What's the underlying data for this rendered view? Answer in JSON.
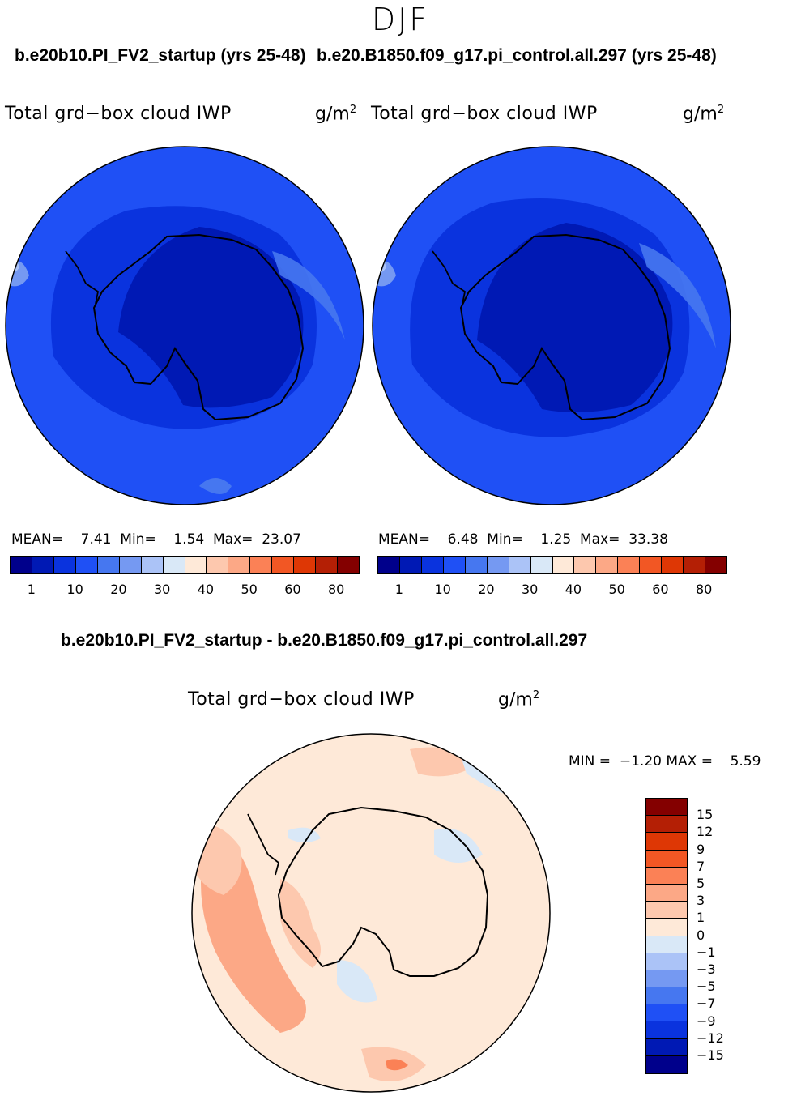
{
  "season": "DJF",
  "case_left_title": "b.e20b10.PI_FV2_startup (yrs 25-48)",
  "case_right_title": "b.e20.B1850.f09_g17.pi_control.all.297 (yrs 25-48)",
  "diff_title": "b.e20b10.PI_FV2_startup - b.e20.B1850.f09_g17.pi_control.all.297",
  "var_name": "Total grd−box cloud IWP",
  "units_base": "g/m",
  "units_exp": "2",
  "colors": {
    "abs_scale": [
      "#00008b",
      "#0019b4",
      "#0a33de",
      "#1f50f5",
      "#4677f0",
      "#7599f2",
      "#abc3f7",
      "#d9e8f7",
      "#fee9d8",
      "#fdc8ae",
      "#fca886",
      "#fb8156",
      "#f25724",
      "#de3705",
      "#b41f05",
      "#840000"
    ],
    "diff_scale": [
      "#840000",
      "#b41f05",
      "#de3705",
      "#f25724",
      "#fb8156",
      "#fca886",
      "#fdc8ae",
      "#fee9d8",
      "#d9e8f7",
      "#abc3f7",
      "#7599f2",
      "#4677f0",
      "#1f50f5",
      "#0a33de",
      "#0019b4",
      "#00008b"
    ]
  },
  "chart_data": [
    {
      "type": "heatmap",
      "title": "b.e20b10.PI_FV2_startup (yrs 25-48)",
      "variable": "Total grd−box cloud IWP",
      "units": "g/m2",
      "projection": "south polar stereographic",
      "stats": {
        "mean_label": "MEAN=",
        "mean": "7.41",
        "min_label": "Min=",
        "min": "1.54",
        "max_label": "Max=",
        "max": "23.07"
      },
      "colorbar_ticks": [
        "1",
        "10",
        "20",
        "30",
        "40",
        "50",
        "60",
        "80"
      ]
    },
    {
      "type": "heatmap",
      "title": "b.e20.B1850.f09_g17.pi_control.all.297 (yrs 25-48)",
      "variable": "Total grd−box cloud IWP",
      "units": "g/m2",
      "projection": "south polar stereographic",
      "stats": {
        "mean_label": "MEAN=",
        "mean": "6.48",
        "min_label": "Min=",
        "min": "1.25",
        "max_label": "Max=",
        "max": "33.38"
      },
      "colorbar_ticks": [
        "1",
        "10",
        "20",
        "30",
        "40",
        "50",
        "60",
        "80"
      ]
    },
    {
      "type": "heatmap",
      "title": "b.e20b10.PI_FV2_startup - b.e20.B1850.f09_g17.pi_control.all.297",
      "variable": "Total grd−box cloud IWP",
      "units": "g/m2",
      "projection": "south polar stereographic",
      "stats": {
        "min_label": "MIN =",
        "min": "−1.20",
        "max_label": "MAX =",
        "max": "5.59"
      },
      "colorbar_ticks": [
        "15",
        "12",
        "9",
        "7",
        "5",
        "3",
        "1",
        "0",
        "−1",
        "−3",
        "−5",
        "−7",
        "−9",
        "−12",
        "−15"
      ]
    }
  ]
}
